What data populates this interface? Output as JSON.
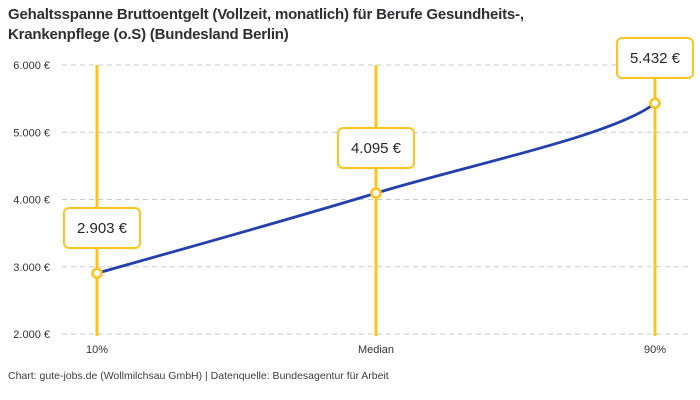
{
  "chart_data": {
    "type": "line",
    "title": "Gehaltsspanne Bruttoentgelt (Vollzeit, monatlich) für Berufe Gesundheits-, Krankenpflege (o.S) (Bundesland Berlin)",
    "title_lines": [
      "Gehaltsspanne Bruttoentgelt (Vollzeit, monatlich) für Berufe Gesundheits-,",
      "Krankenpflege (o.S) (Bundesland Berlin)"
    ],
    "categories": [
      "10%",
      "Median",
      "90%"
    ],
    "values": [
      2903,
      4095,
      5432
    ],
    "point_labels": [
      "2.903 €",
      "4.095 €",
      "5.432 €"
    ],
    "xlabel": "",
    "ylabel": "",
    "ylim": [
      2000,
      6000
    ],
    "yticks": [
      2000,
      3000,
      4000,
      5000,
      6000
    ],
    "ytick_labels": [
      "2.000 €",
      "3.000 €",
      "4.000 €",
      "5.000 €",
      "6.000 €"
    ],
    "grid": "horizontal-dashed",
    "legend": "none",
    "colors": {
      "accent_yellow": "#FDC41E",
      "line_blue": "#2340AC",
      "grid_gray": "#CBCBCB",
      "title_text": "#2F2F33",
      "axis_text": "#333333",
      "footer_text": "#3C3C3C",
      "background": "#FFFFFF"
    }
  },
  "footer": "Chart: gute-jobs.de (Wollmilchsau GmbH) | Datenquelle: Bundesagentur für Arbeit"
}
